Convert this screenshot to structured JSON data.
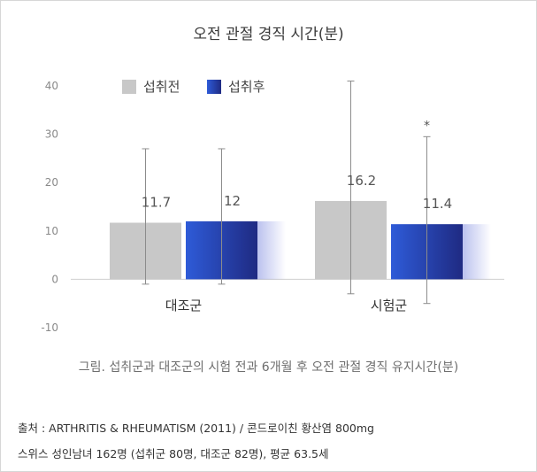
{
  "chart_data": {
    "type": "bar",
    "title": "오전 관절 경직 시간(분)",
    "categories": [
      "대조군",
      "시험군"
    ],
    "series": [
      {
        "name": "섭취전",
        "values": [
          11.7,
          16.2
        ],
        "error_low": [
          -1,
          -3
        ],
        "error_high": [
          27,
          41
        ],
        "color": "#c8c8c8"
      },
      {
        "name": "섭취후",
        "values": [
          12,
          11.4
        ],
        "error_low": [
          -1,
          -5
        ],
        "error_high": [
          27,
          29.5
        ],
        "color": "#2b3fb0"
      }
    ],
    "value_labels": [
      [
        "11.7",
        "16.2"
      ],
      [
        "12",
        "11.4"
      ]
    ],
    "significance_marker": {
      "category": "시험군",
      "series": "섭취후",
      "text": "*"
    },
    "ylim": [
      -10,
      40
    ],
    "yticks": [
      -10,
      0,
      10,
      20,
      30,
      40
    ],
    "ytick_labels": [
      "-10",
      "0",
      "10",
      "20",
      "30",
      "40"
    ],
    "xlabel": "",
    "ylabel": "",
    "grid": false,
    "legend_position": "top-left"
  },
  "caption": "그림. 섭취군과 대조군의 시험 전과 6개월 후 오전 관절 경직 유지시간(분)",
  "source_line1": "출처 :  ARTHRITIS & RHEUMATISM (2011) / 콘드로이친 황산염 800mg",
  "source_line2": "스위스 성인남녀 162명 (섭취군 80명, 대조군 82명), 평균 63.5세"
}
